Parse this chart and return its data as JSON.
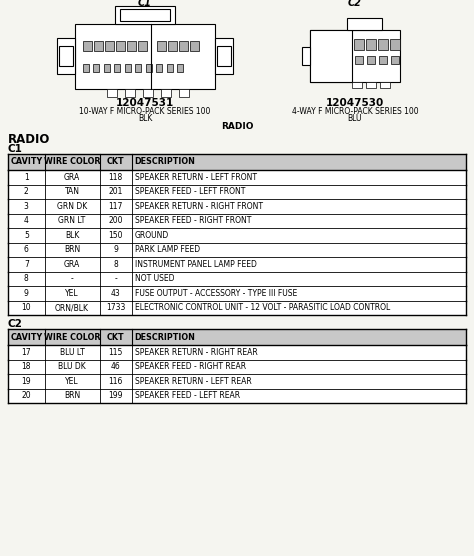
{
  "bg_color": "#f5f5f0",
  "part1_number": "12047531",
  "part1_desc1": "10-WAY F MICRO-PACK SERIES 100",
  "part1_desc2": "BLK",
  "part1_desc3": "RADIO",
  "part2_number": "12047530",
  "part2_desc1": "4-WAY F MICRO-PACK SERIES 100",
  "part2_desc2": "BLU",
  "c1_headers": [
    "CAVITY",
    "WIRE COLOR",
    "CKT",
    "DESCRIPTION"
  ],
  "c1_rows": [
    [
      "1",
      "GRA",
      "118",
      "SPEAKER RETURN - LEFT FRONT"
    ],
    [
      "2",
      "TAN",
      "201",
      "SPEAKER FEED - LEFT FRONT"
    ],
    [
      "3",
      "GRN DK",
      "117",
      "SPEAKER RETURN - RIGHT FRONT"
    ],
    [
      "4",
      "GRN LT",
      "200",
      "SPEAKER FEED - RIGHT FRONT"
    ],
    [
      "5",
      "BLK",
      "150",
      "GROUND"
    ],
    [
      "6",
      "BRN",
      "9",
      "PARK LAMP FEED"
    ],
    [
      "7",
      "GRA",
      "8",
      "INSTRUMENT PANEL LAMP FEED"
    ],
    [
      "8",
      "-",
      "-",
      "NOT USED"
    ],
    [
      "9",
      "YEL",
      "43",
      "FUSE OUTPUT - ACCESSORY - TYPE III FUSE"
    ],
    [
      "10",
      "ORN/BLK",
      "1733",
      "ELECTRONIC CONTROL UNIT - 12 VOLT - PARASITIC LOAD CONTROL"
    ]
  ],
  "c2_headers": [
    "CAVITY",
    "WIRE COLOR",
    "CKT",
    "DESCRIPTION"
  ],
  "c2_rows": [
    [
      "17",
      "BLU LT",
      "115",
      "SPEAKER RETURN - RIGHT REAR"
    ],
    [
      "18",
      "BLU DK",
      "46",
      "SPEAKER FEED - RIGHT REAR"
    ],
    [
      "19",
      "YEL",
      "116",
      "SPEAKER RETURN - LEFT REAR"
    ],
    [
      "20",
      "BRN",
      "199",
      "SPEAKER FEED - LEFT REAR"
    ]
  ]
}
